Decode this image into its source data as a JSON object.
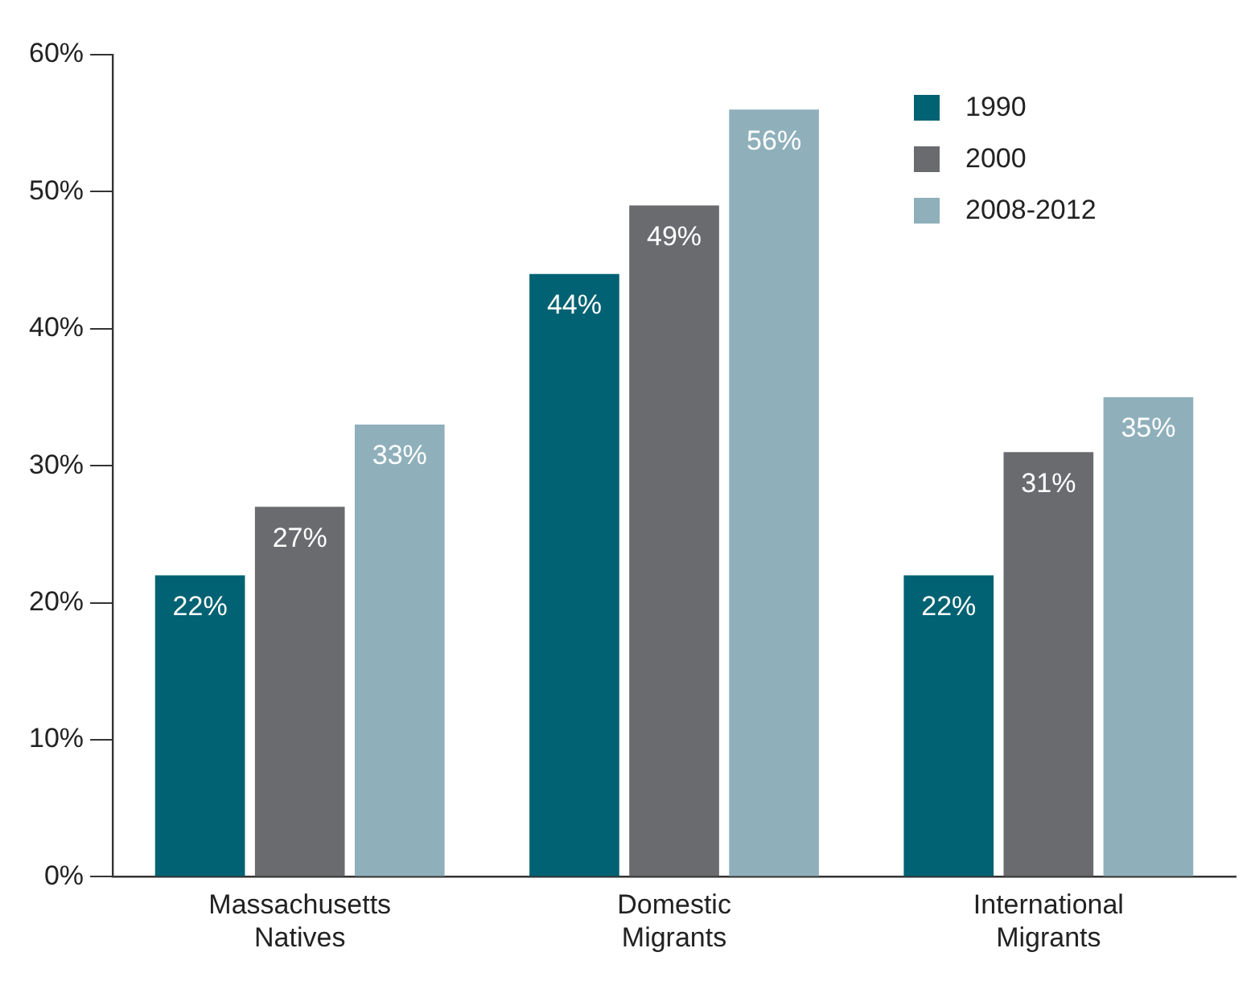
{
  "chart_data": {
    "type": "bar",
    "categories": [
      "Massachusetts Natives",
      "Domestic Migrants",
      "International Migrants"
    ],
    "series": [
      {
        "name": "1990",
        "color": "#006272",
        "values": [
          22,
          44,
          22
        ],
        "value_labels": [
          "22%",
          "44%",
          "22%"
        ]
      },
      {
        "name": "2000",
        "color": "#6a6b6f",
        "values": [
          27,
          49,
          31
        ],
        "value_labels": [
          "27%",
          "49%",
          "31%"
        ]
      },
      {
        "name": "2008-2012",
        "color": "#8fb0bb",
        "values": [
          33,
          56,
          35
        ],
        "value_labels": [
          "33%",
          "56%",
          "35%"
        ]
      }
    ],
    "ylim": [
      0,
      60
    ],
    "yticks": [
      {
        "value": 0,
        "label": "0%"
      },
      {
        "value": 10,
        "label": "10%"
      },
      {
        "value": 20,
        "label": "20%"
      },
      {
        "value": 30,
        "label": "30%"
      },
      {
        "value": 40,
        "label": "40%"
      },
      {
        "value": 50,
        "label": "50%"
      },
      {
        "value": 60,
        "label": "60%"
      }
    ],
    "grid": false,
    "legend": "top right"
  }
}
